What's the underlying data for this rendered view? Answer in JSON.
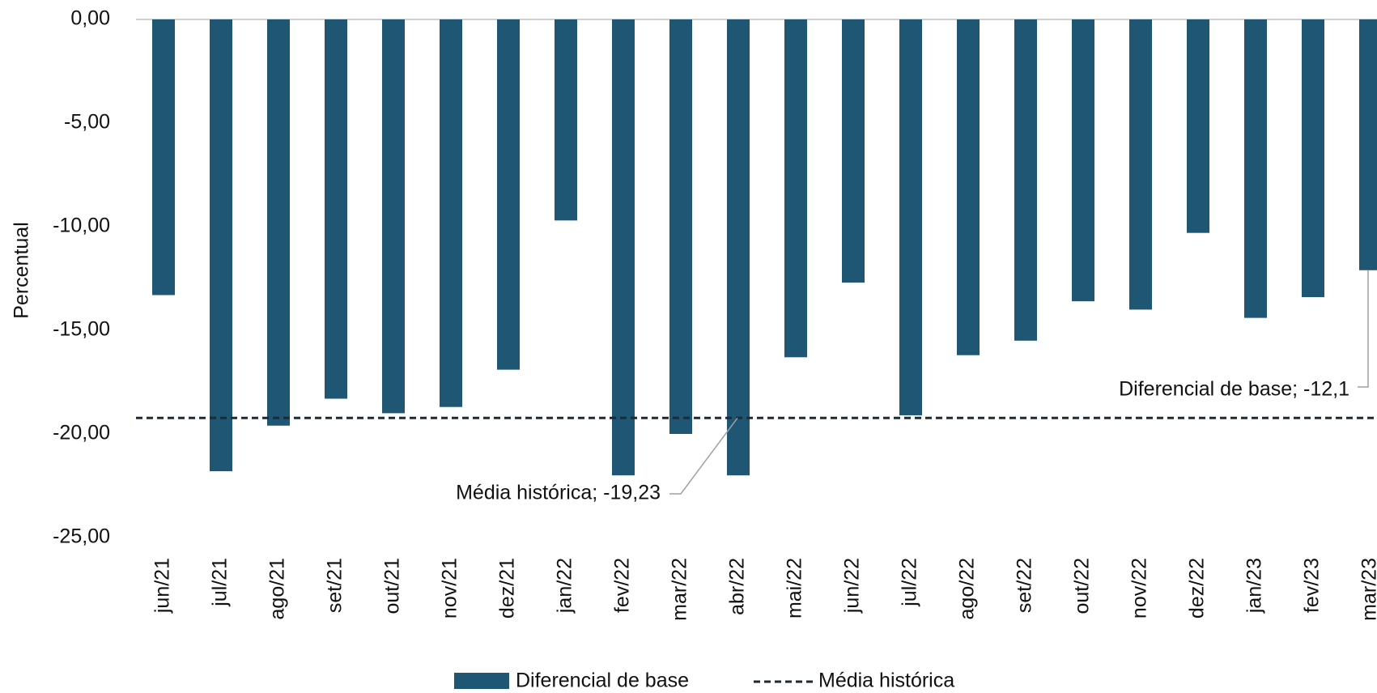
{
  "chart_data": {
    "type": "bar",
    "y_label": "Percentual",
    "categories": [
      "jun/21",
      "jul/21",
      "ago/21",
      "set/21",
      "out/21",
      "nov/21",
      "dez/21",
      "jan/22",
      "fev/22",
      "mar/22",
      "abr/22",
      "mai/22",
      "jun/22",
      "jul/22",
      "ago/22",
      "set/22",
      "out/22",
      "nov/22",
      "dez/22",
      "jan/23",
      "fev/23",
      "mar/23"
    ],
    "series": [
      {
        "name": "Diferencial de base",
        "color": "#1f5673",
        "values": [
          -13.3,
          -21.8,
          -19.6,
          -18.3,
          -19.0,
          -18.7,
          -16.9,
          -9.7,
          -22.0,
          -20.0,
          -22.0,
          -16.3,
          -12.7,
          -19.1,
          -16.2,
          -15.5,
          -13.6,
          -14.0,
          -10.3,
          -14.4,
          -13.4,
          -12.1
        ]
      },
      {
        "name": "Média histórica",
        "color": "#1e2a36",
        "kind": "dashed-line",
        "value": -19.23
      }
    ],
    "annotations": [
      "Média histórica; -19,23",
      "Diferencial de base; -12,1"
    ],
    "ylim": [
      -25,
      0
    ],
    "yticks": [
      {
        "value": 0,
        "label": "0,00"
      },
      {
        "value": -5,
        "label": "-5,00"
      },
      {
        "value": -10,
        "label": "-10,00"
      },
      {
        "value": -15,
        "label": "-15,00"
      },
      {
        "value": -20,
        "label": "-20,00"
      },
      {
        "value": -25,
        "label": "-25,00"
      }
    ],
    "grid": false
  }
}
